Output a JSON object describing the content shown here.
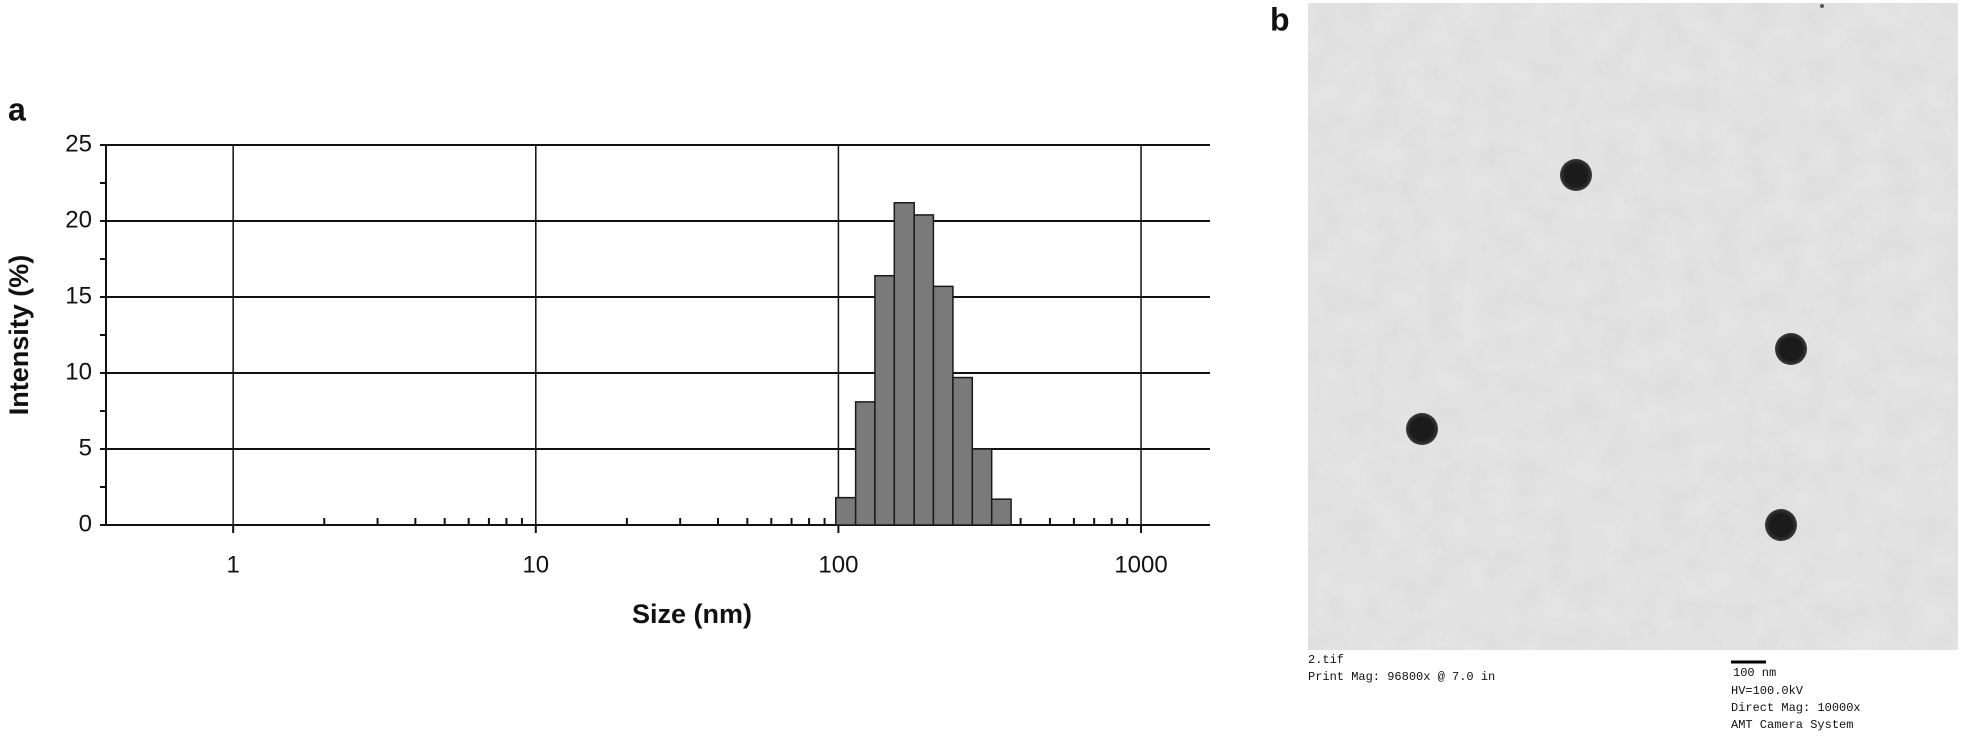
{
  "panel_labels": [
    "a",
    "b"
  ],
  "chart_data": {
    "type": "histogram",
    "x_label": "Size (nm)",
    "y_label": "Intensity (%)",
    "bins": [
      98,
      114,
      132,
      153,
      178,
      206,
      239,
      277,
      321,
      372
    ],
    "values": [
      1.8,
      8.1,
      16.4,
      21.2,
      20.4,
      15.7,
      9.7,
      5.0,
      1.7
    ],
    "color": "#7a7a7a",
    "xscale": "log",
    "xlim": [
      0.38,
      1690
    ],
    "xticks": [
      1,
      10,
      100,
      1000
    ],
    "ylim": [
      0,
      25
    ],
    "yticks": [
      0,
      5,
      10,
      15,
      20,
      25
    ],
    "grid": true
  },
  "image": {
    "caption_left": [
      "2.tif",
      "Print Mag: 96800x @ 7.0 in"
    ],
    "scale_bar": "100 nm",
    "caption_right": [
      "HV=100.0kV",
      "Direct Mag: 10000x",
      "AMT Camera System"
    ]
  }
}
